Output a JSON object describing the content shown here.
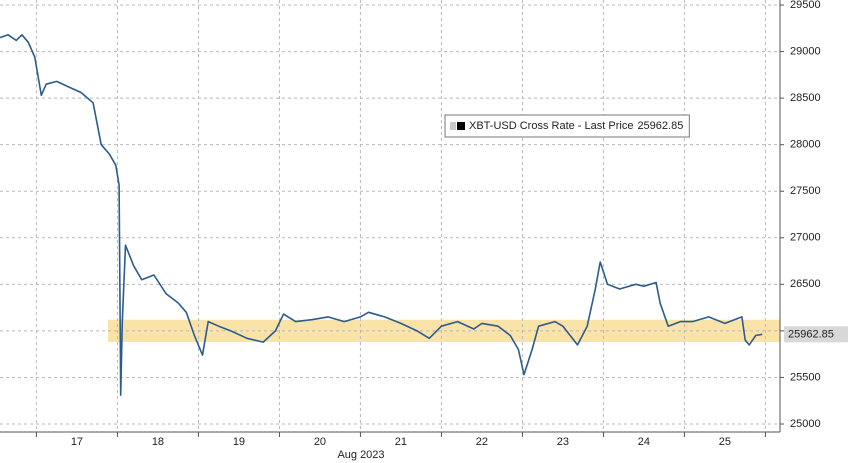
{
  "chart_data": {
    "type": "line",
    "x_label": "Aug 2023",
    "xlim": [
      16.05,
      25.68
    ],
    "xticks": [
      17,
      18,
      19,
      20,
      21,
      22,
      23,
      24,
      25
    ],
    "xgrid": [
      16.5,
      17.5,
      18.5,
      19.5,
      20.5,
      21.5,
      22.5,
      23.5,
      24.5,
      25.5
    ],
    "ylim": [
      24914,
      29554
    ],
    "yticks": [
      25000,
      25500,
      26000,
      26500,
      27000,
      27500,
      28000,
      28500,
      29000,
      29500
    ],
    "grid": true,
    "band": [
      25880,
      26120
    ],
    "band_color": "#f8d98c",
    "last_price": 25962.85,
    "series": [
      {
        "name": "XBT-USD Cross Rate - Last Price",
        "color": "#2b5c8c",
        "x": [
          16.05,
          16.15,
          16.25,
          16.32,
          16.4,
          16.48,
          16.56,
          16.62,
          16.75,
          16.9,
          17.05,
          17.2,
          17.3,
          17.4,
          17.48,
          17.52,
          17.54,
          17.56,
          17.6,
          17.7,
          17.8,
          17.95,
          18.1,
          18.25,
          18.35,
          18.45,
          18.55,
          18.62,
          18.75,
          18.9,
          19.1,
          19.3,
          19.45,
          19.55,
          19.7,
          19.9,
          20.1,
          20.3,
          20.5,
          20.6,
          20.8,
          21.0,
          21.2,
          21.35,
          21.5,
          21.7,
          21.9,
          22.0,
          22.2,
          22.35,
          22.45,
          22.52,
          22.62,
          22.7,
          22.9,
          23.0,
          23.18,
          23.3,
          23.4,
          23.46,
          23.55,
          23.7,
          23.9,
          24.0,
          24.15,
          24.2,
          24.3,
          24.45,
          24.6,
          24.8,
          25.0,
          25.21,
          25.25,
          25.3,
          25.38,
          25.46
        ],
        "values": [
          29150,
          29180,
          29120,
          29180,
          29100,
          28940,
          28530,
          28650,
          28680,
          28620,
          28560,
          28450,
          28000,
          27900,
          27780,
          27565,
          25310,
          26100,
          26920,
          26700,
          26550,
          26600,
          26400,
          26300,
          26200,
          25950,
          25740,
          26100,
          26050,
          26000,
          25920,
          25880,
          26000,
          26180,
          26100,
          26120,
          26150,
          26100,
          26150,
          26200,
          26150,
          26080,
          26000,
          25920,
          26050,
          26100,
          26020,
          26080,
          26050,
          25950,
          25800,
          25530,
          25800,
          26050,
          26100,
          26050,
          25850,
          26050,
          26450,
          26740,
          26500,
          26450,
          26500,
          26480,
          26520,
          26300,
          26050,
          26100,
          26100,
          26150,
          26080,
          26150,
          25900,
          25850,
          25950,
          25963
        ]
      }
    ]
  }
}
